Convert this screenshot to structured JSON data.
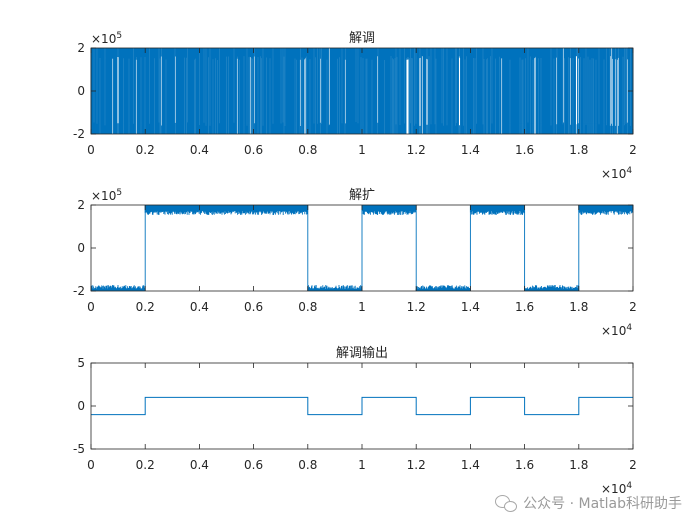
{
  "chart_data": [
    {
      "type": "line",
      "title": "解调",
      "xlim": [
        0,
        20000
      ],
      "ylim": [
        -200000,
        200000
      ],
      "x_ticks": [
        0,
        2000,
        4000,
        6000,
        8000,
        10000,
        12000,
        14000,
        16000,
        18000,
        20000
      ],
      "x_tick_labels": [
        "0",
        "0.2",
        "0.4",
        "0.6",
        "0.8",
        "1",
        "1.2",
        "1.4",
        "1.6",
        "1.8",
        "2"
      ],
      "x_multiplier": "×10",
      "x_multiplier_exp": "4",
      "y_ticks": [
        -200000,
        0,
        200000
      ],
      "y_tick_labels": [
        "-2",
        "0",
        "2"
      ],
      "y_multiplier": "×10",
      "y_multiplier_exp": "5",
      "series": [
        {
          "color": "#0072BD",
          "description": "dense noise-like signal switching rapidly between about -200000 and 200000 over the full range",
          "amplitude": 200000
        }
      ]
    },
    {
      "type": "line",
      "title": "解扩",
      "xlim": [
        0,
        20000
      ],
      "ylim": [
        -200000,
        200000
      ],
      "x_ticks": [
        0,
        2000,
        4000,
        6000,
        8000,
        10000,
        12000,
        14000,
        16000,
        18000,
        20000
      ],
      "x_tick_labels": [
        "0",
        "0.2",
        "0.4",
        "0.6",
        "0.8",
        "1",
        "1.2",
        "1.4",
        "1.6",
        "1.8",
        "2"
      ],
      "x_multiplier": "×10",
      "x_multiplier_exp": "4",
      "y_ticks": [
        -200000,
        0,
        200000
      ],
      "y_tick_labels": [
        "-2",
        "0",
        "2"
      ],
      "y_multiplier": "×10",
      "y_multiplier_exp": "5",
      "series": [
        {
          "color": "#0072BD",
          "segments": [
            {
              "x_start": 0,
              "x_end": 2000,
              "low": -200000,
              "high": -100000
            },
            {
              "x_start": 2000,
              "x_end": 8000,
              "low": 100000,
              "high": 200000
            },
            {
              "x_start": 8000,
              "x_end": 10000,
              "low": -200000,
              "high": -100000
            },
            {
              "x_start": 10000,
              "x_end": 12000,
              "low": 100000,
              "high": 200000
            },
            {
              "x_start": 12000,
              "x_end": 14000,
              "low": -200000,
              "high": -100000
            },
            {
              "x_start": 14000,
              "x_end": 16000,
              "low": 100000,
              "high": 200000
            },
            {
              "x_start": 16000,
              "x_end": 18000,
              "low": -200000,
              "high": -100000
            },
            {
              "x_start": 18000,
              "x_end": 20000,
              "low": 100000,
              "high": 200000
            }
          ]
        }
      ]
    },
    {
      "type": "line",
      "title": "解调输出",
      "xlim": [
        0,
        20000
      ],
      "ylim": [
        -5,
        5
      ],
      "x_ticks": [
        0,
        2000,
        4000,
        6000,
        8000,
        10000,
        12000,
        14000,
        16000,
        18000,
        20000
      ],
      "x_tick_labels": [
        "0",
        "0.2",
        "0.4",
        "0.6",
        "0.8",
        "1",
        "1.2",
        "1.4",
        "1.6",
        "1.8",
        "2"
      ],
      "x_multiplier": "×10",
      "x_multiplier_exp": "4",
      "y_ticks": [
        -5,
        0,
        5
      ],
      "y_tick_labels": [
        "-5",
        "0",
        "5"
      ],
      "series": [
        {
          "color": "#0072BD",
          "x": [
            0,
            2000,
            2000,
            8000,
            8000,
            10000,
            10000,
            12000,
            12000,
            14000,
            14000,
            16000,
            16000,
            18000,
            18000,
            20000
          ],
          "y": [
            -1,
            -1,
            1,
            1,
            -1,
            -1,
            1,
            1,
            -1,
            -1,
            1,
            1,
            -1,
            -1,
            1,
            1
          ]
        }
      ]
    }
  ],
  "watermark": {
    "icon": "wechat-icon",
    "text": "公众号 · Matlab科研助手"
  }
}
